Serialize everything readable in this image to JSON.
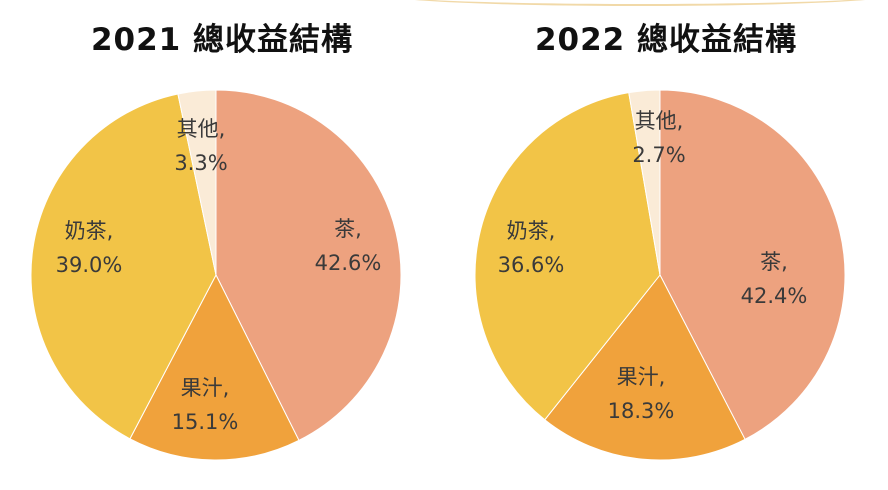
{
  "chart_data": [
    {
      "type": "pie",
      "title": "2021 總收益結構",
      "slices": [
        {
          "name": "茶,",
          "value": 42.6,
          "label": "42.6%",
          "color": "#eda27f"
        },
        {
          "name": "果汁,",
          "value": 15.1,
          "label": "15.1%",
          "color": "#f0a23c"
        },
        {
          "name": "奶茶,",
          "value": 39.0,
          "label": "39.0%",
          "color": "#f2c447"
        },
        {
          "name": "其他,",
          "value": 3.3,
          "label": "3.3%",
          "color": "#faebd7"
        }
      ]
    },
    {
      "type": "pie",
      "title": "2022 總收益結構",
      "slices": [
        {
          "name": "茶,",
          "value": 42.4,
          "label": "42.4%",
          "color": "#eda27f"
        },
        {
          "name": "果汁,",
          "value": 18.3,
          "label": "18.3%",
          "color": "#f0a23c"
        },
        {
          "name": "奶茶,",
          "value": 36.6,
          "label": "36.6%",
          "color": "#f2c447"
        },
        {
          "name": "其他,",
          "value": 2.7,
          "label": "2.7%",
          "color": "#faebd7"
        }
      ]
    }
  ]
}
